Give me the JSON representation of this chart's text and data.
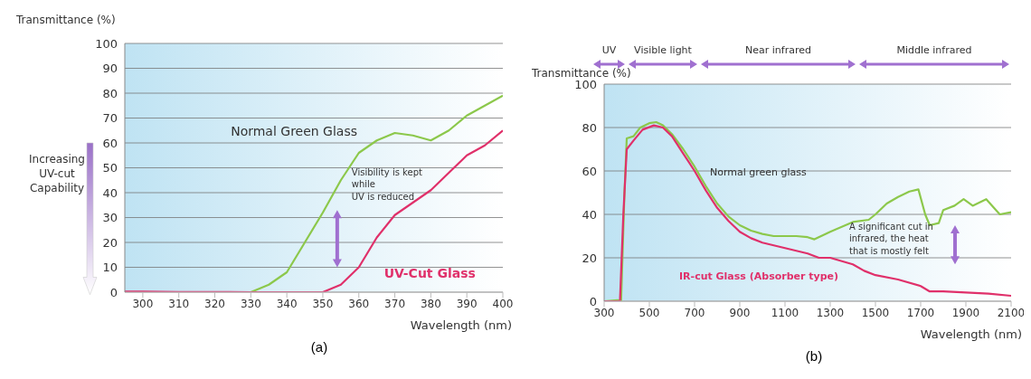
{
  "chart_data": [
    {
      "type": "line",
      "title": "(a)",
      "xlabel": "Wavelength (nm)",
      "ylabel": "Transmittance (%)",
      "series": [
        {
          "name": "Normal Green Glass",
          "color": "#8cc84b",
          "x": [
            330,
            335,
            340,
            345,
            350,
            355,
            360,
            365,
            370,
            375,
            380,
            385,
            390,
            395,
            400
          ],
          "values": [
            0,
            3,
            8,
            20,
            32,
            45,
            56,
            61,
            64,
            63,
            61,
            65,
            71,
            75,
            79
          ]
        },
        {
          "name": "UV-Cut Glass",
          "color": "#e0306a",
          "x": [
            295,
            300,
            310,
            320,
            330,
            340,
            350,
            355,
            360,
            365,
            370,
            375,
            380,
            385,
            390,
            395,
            400
          ],
          "values": [
            0.2,
            0.2,
            0.1,
            0.1,
            0,
            0,
            0,
            3,
            10,
            22,
            31,
            36,
            41,
            48,
            55,
            59,
            65
          ]
        }
      ],
      "xlim": [
        295,
        400
      ],
      "xticks": [
        300,
        310,
        320,
        330,
        340,
        350,
        360,
        370,
        380,
        390,
        400
      ],
      "ylim": [
        0,
        100
      ],
      "yticks": [
        0,
        10,
        20,
        30,
        40,
        50,
        60,
        70,
        80,
        90,
        100
      ],
      "grid": "y",
      "annotations": [
        "Visibility is kept while UV is reduced",
        "Increasing UV-cut Capability"
      ]
    },
    {
      "type": "line",
      "title": "(b)",
      "xlabel": "Wavelength (nm)",
      "ylabel": "Transmittance (%)",
      "series": [
        {
          "name": "Normal green glass",
          "color": "#8cc84b",
          "x": [
            300,
            360,
            375,
            390,
            400,
            430,
            460,
            500,
            530,
            560,
            600,
            650,
            700,
            750,
            800,
            850,
            900,
            950,
            1000,
            1050,
            1100,
            1150,
            1200,
            1230,
            1300,
            1400,
            1470,
            1500,
            1550,
            1600,
            1650,
            1690,
            1720,
            1740,
            1780,
            1800,
            1850,
            1890,
            1930,
            1990,
            2050,
            2100
          ],
          "values": [
            0,
            0.5,
            0,
            50,
            75,
            76,
            80,
            82,
            82.5,
            81,
            77,
            70,
            62,
            53,
            45,
            39,
            35,
            32.5,
            31,
            30,
            30,
            30,
            29.5,
            28.5,
            32,
            36.5,
            37.5,
            40,
            45,
            48,
            50.5,
            51.5,
            40,
            35,
            36,
            42,
            44,
            47,
            44,
            47,
            40,
            41
          ]
        },
        {
          "name": "IR-cut Glass (Absorber type)",
          "color": "#e0306a",
          "x": [
            300,
            370,
            385,
            400,
            430,
            470,
            520,
            560,
            600,
            650,
            700,
            750,
            800,
            850,
            900,
            950,
            1000,
            1100,
            1200,
            1250,
            1300,
            1400,
            1450,
            1500,
            1600,
            1700,
            1740,
            1800,
            1900,
            2000,
            2100
          ],
          "values": [
            0,
            0,
            40,
            70,
            74,
            79,
            81,
            80,
            76,
            68,
            60,
            51,
            43,
            37,
            32,
            29,
            27,
            24.5,
            22,
            20,
            20,
            17,
            14,
            12,
            10,
            7,
            4.5,
            4.5,
            4,
            3.5,
            2.5
          ]
        }
      ],
      "xlim": [
        300,
        2100
      ],
      "xticks": [
        300,
        500,
        700,
        900,
        1100,
        1300,
        1500,
        1700,
        1900,
        2100
      ],
      "ylim": [
        0,
        100
      ],
      "yticks": [
        0,
        20,
        40,
        60,
        80,
        100
      ],
      "grid": "y",
      "annotations": [
        "A significant cut in infrared, the heat that is mostly felt",
        "UV",
        "Visible light",
        "Near infrared",
        "Middle infrared"
      ]
    }
  ]
}
